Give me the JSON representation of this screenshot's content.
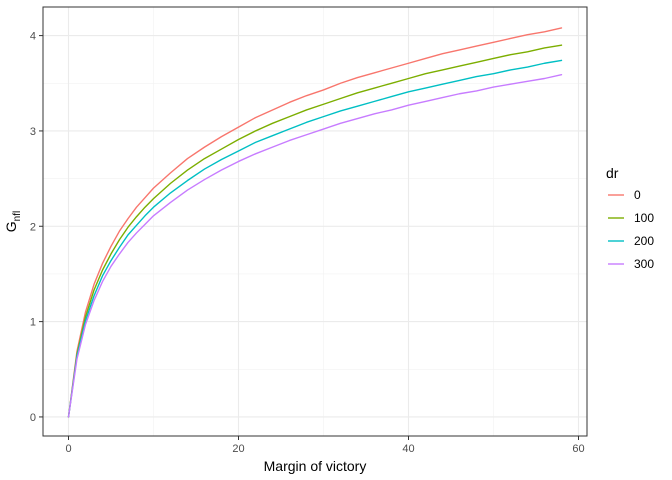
{
  "chart_data": {
    "type": "line",
    "title": "",
    "xlabel": "Margin of victory",
    "ylabel_main": "G",
    "ylabel_sub": "nfl",
    "xlim": [
      -3,
      61
    ],
    "ylim": [
      -0.2,
      4.3
    ],
    "xticks": [
      0,
      20,
      40,
      60
    ],
    "yticks": [
      0,
      1,
      2,
      3,
      4
    ],
    "grid": true,
    "legend": {
      "title": "dr",
      "position": "right"
    },
    "x": [
      0,
      1,
      2,
      3,
      4,
      5,
      6,
      7,
      8,
      9,
      10,
      12,
      14,
      16,
      18,
      20,
      22,
      24,
      26,
      28,
      30,
      32,
      34,
      36,
      38,
      40,
      42,
      44,
      46,
      48,
      50,
      52,
      54,
      56,
      58
    ],
    "series": [
      {
        "name": "0",
        "color": "#F8766D",
        "values": [
          0.0,
          0.69,
          1.1,
          1.39,
          1.61,
          1.79,
          1.95,
          2.08,
          2.2,
          2.3,
          2.4,
          2.56,
          2.71,
          2.83,
          2.94,
          3.04,
          3.14,
          3.22,
          3.3,
          3.37,
          3.43,
          3.5,
          3.56,
          3.61,
          3.66,
          3.71,
          3.76,
          3.81,
          3.85,
          3.89,
          3.93,
          3.97,
          4.01,
          4.04,
          4.08
        ]
      },
      {
        "name": "100",
        "color": "#7CAE00",
        "values": [
          0.0,
          0.66,
          1.05,
          1.33,
          1.54,
          1.71,
          1.86,
          1.99,
          2.1,
          2.2,
          2.29,
          2.45,
          2.59,
          2.71,
          2.81,
          2.91,
          3.0,
          3.08,
          3.15,
          3.22,
          3.28,
          3.34,
          3.4,
          3.45,
          3.5,
          3.55,
          3.6,
          3.64,
          3.68,
          3.72,
          3.76,
          3.8,
          3.83,
          3.87,
          3.9
        ]
      },
      {
        "name": "200",
        "color": "#00BFC4",
        "values": [
          0.0,
          0.64,
          1.01,
          1.27,
          1.48,
          1.64,
          1.78,
          1.91,
          2.01,
          2.11,
          2.2,
          2.35,
          2.48,
          2.6,
          2.7,
          2.79,
          2.88,
          2.95,
          3.02,
          3.09,
          3.15,
          3.21,
          3.26,
          3.31,
          3.36,
          3.41,
          3.45,
          3.49,
          3.53,
          3.57,
          3.6,
          3.64,
          3.67,
          3.71,
          3.74
        ]
      },
      {
        "name": "300",
        "color": "#C77CFF",
        "values": [
          0.0,
          0.61,
          0.97,
          1.22,
          1.42,
          1.58,
          1.71,
          1.83,
          1.93,
          2.02,
          2.11,
          2.25,
          2.38,
          2.49,
          2.59,
          2.68,
          2.76,
          2.83,
          2.9,
          2.96,
          3.02,
          3.08,
          3.13,
          3.18,
          3.22,
          3.27,
          3.31,
          3.35,
          3.39,
          3.42,
          3.46,
          3.49,
          3.52,
          3.55,
          3.59
        ]
      }
    ]
  }
}
